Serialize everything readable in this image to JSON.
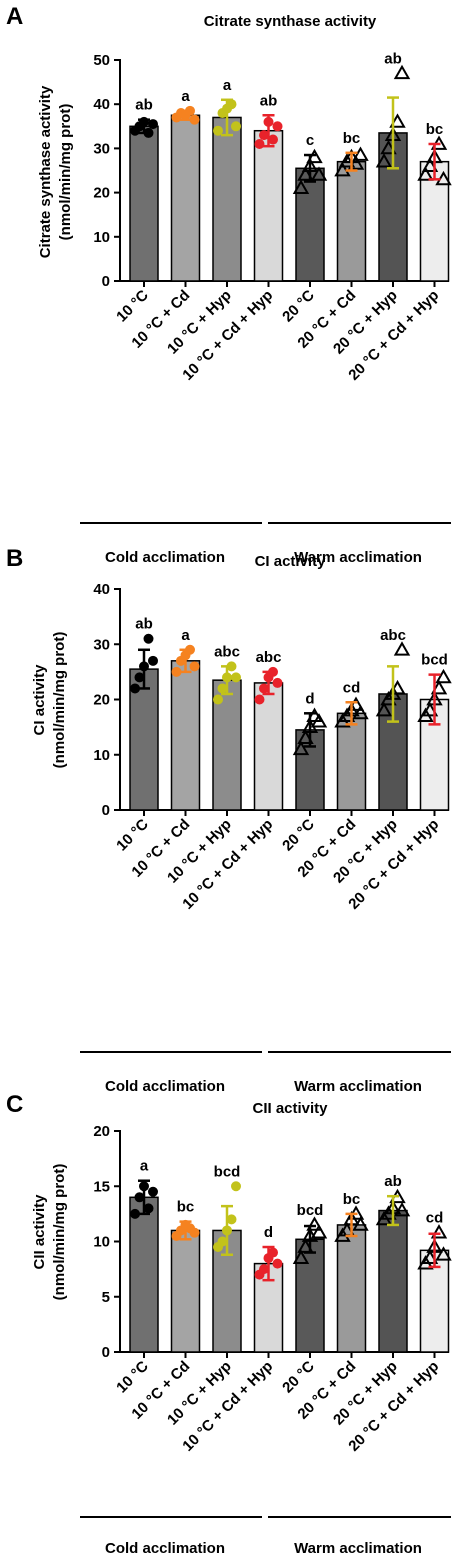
{
  "colors": {
    "bar_fills": [
      "#707070",
      "#a4a4a4",
      "#8c8c8c",
      "#d9d9d9",
      "#595959",
      "#9a9a9a",
      "#545454",
      "#ededed"
    ],
    "point_colors": [
      "#000000",
      "#f58220",
      "#c2c21a",
      "#e8222a",
      "#000000",
      "#000000",
      "#000000",
      "#000000"
    ],
    "error_colors": [
      "#000000",
      "#f58220",
      "#c2c21a",
      "#e8222a",
      "#000000",
      "#f58220",
      "#c2c21a",
      "#e8222a"
    ]
  },
  "groups": [
    "Cold acclimation",
    "Warm acclimation"
  ],
  "chart_data": [
    {
      "panel": "A",
      "type": "bar",
      "title": "Citrate synthase activity",
      "ylabel": [
        "Citrate synthase activity",
        "(nmol/min/mg prot)"
      ],
      "ylim": [
        0,
        50
      ],
      "yticks": [
        0,
        10,
        20,
        30,
        40,
        50
      ],
      "categories": [
        "10 °C",
        "10 °C + Cd",
        "10 °C + Hyp",
        "10 °C + Cd + Hyp",
        "20 °C",
        "20 °C + Cd",
        "20 °C + Hyp",
        "20 °C + Cd + Hyp"
      ],
      "values": [
        35,
        37.5,
        37,
        34,
        25.5,
        27,
        33.5,
        27
      ],
      "errors": [
        1.5,
        1,
        4,
        3.5,
        3,
        2,
        8,
        4
      ],
      "points": [
        [
          34,
          35,
          36,
          33.5,
          35.5
        ],
        [
          37,
          38,
          37.5,
          38.5,
          36.5
        ],
        [
          34,
          38,
          39,
          40,
          35
        ],
        [
          31,
          33,
          36,
          32,
          35
        ],
        [
          21,
          24,
          26,
          28,
          24
        ],
        [
          25,
          27,
          28,
          26.5,
          28.5
        ],
        [
          27,
          30,
          33,
          36,
          47
        ],
        [
          24,
          26,
          28,
          31,
          23
        ]
      ],
      "significance": [
        "ab",
        "a",
        "a",
        "ab",
        "c",
        "bc",
        "ab",
        "bc"
      ]
    },
    {
      "panel": "B",
      "type": "bar",
      "title": "CI activity",
      "ylabel": [
        "CI activity",
        "(nmol/min/mg prot)"
      ],
      "ylim": [
        0,
        40
      ],
      "yticks": [
        0,
        10,
        20,
        30,
        40
      ],
      "categories": [
        "10 °C",
        "10 °C + Cd",
        "10 °C + Hyp",
        "10 °C + Cd + Hyp",
        "20 °C",
        "20 °C + Cd",
        "20 °C + Hyp",
        "20 °C + Cd + Hyp"
      ],
      "values": [
        25.5,
        27,
        23.5,
        23,
        14.5,
        17.5,
        21,
        20
      ],
      "errors": [
        3.5,
        2,
        2.5,
        2,
        3,
        2,
        5,
        4.5
      ],
      "points": [
        [
          22,
          24,
          26,
          31,
          27
        ],
        [
          25,
          27,
          28,
          29,
          26
        ],
        [
          20,
          22,
          24,
          26,
          24
        ],
        [
          20,
          22,
          24,
          25,
          23
        ],
        [
          11,
          13,
          15,
          17,
          16
        ],
        [
          16,
          17,
          18,
          19,
          17.5
        ],
        [
          18,
          20,
          21,
          22,
          29
        ],
        [
          17,
          18,
          20,
          22,
          24
        ]
      ],
      "significance": [
        "ab",
        "a",
        "abc",
        "abc",
        "d",
        "cd",
        "abc",
        "bcd"
      ]
    },
    {
      "panel": "C",
      "type": "bar",
      "title": "CII activity",
      "ylabel": [
        "CII activity",
        "(nmol/min/mg prot)"
      ],
      "ylim": [
        0,
        20
      ],
      "yticks": [
        0,
        5,
        10,
        15,
        20
      ],
      "categories": [
        "10 °C",
        "10 °C + Cd",
        "10 °C + Hyp",
        "10 °C + Cd + Hyp",
        "20 °C",
        "20 °C + Cd",
        "20 °C + Hyp",
        "20 °C + Cd + Hyp"
      ],
      "values": [
        14,
        11,
        11,
        8,
        10.2,
        11.5,
        12.8,
        9.2
      ],
      "errors": [
        1.5,
        0.8,
        2.2,
        1.5,
        1.2,
        1,
        1.3,
        1.5
      ],
      "points": [
        [
          12.5,
          14,
          15,
          13,
          14.5
        ],
        [
          10.5,
          11,
          11.5,
          11.2,
          10.8
        ],
        [
          9.5,
          10,
          11,
          12,
          15
        ],
        [
          7,
          7.5,
          8.5,
          9,
          8
        ],
        [
          8.5,
          9.5,
          10.5,
          11.5,
          10.8
        ],
        [
          10.5,
          11,
          12,
          12.5,
          11.5
        ],
        [
          12,
          12.5,
          13,
          14,
          12.8
        ],
        [
          8,
          8.5,
          9.5,
          10.8,
          8.8
        ]
      ],
      "significance": [
        "a",
        "bc",
        "bcd",
        "d",
        "bcd",
        "bc",
        "ab",
        "cd"
      ]
    }
  ]
}
